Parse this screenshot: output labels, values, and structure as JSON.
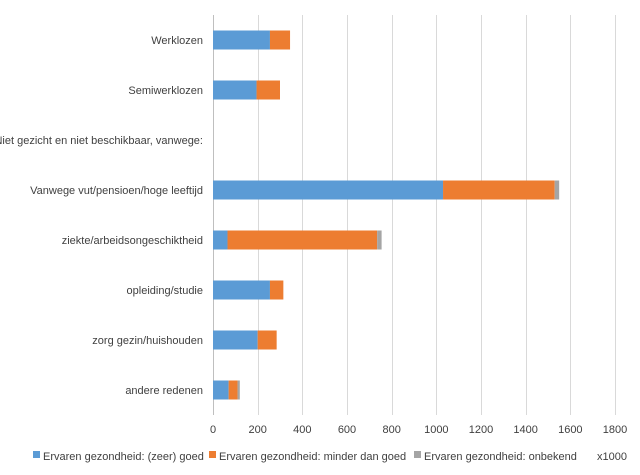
{
  "chart_data": {
    "type": "bar",
    "orientation": "horizontal",
    "stacked": true,
    "categories": [
      "Werklozen",
      "Semiwerklozen",
      "Niet gezicht en niet beschikbaar, vanwege:",
      "Vanwege vut/pensioen/hoge leeftijd",
      "ziekte/arbeidsongeschiktheid",
      "opleiding/studie",
      "zorg gezin/huishouden",
      "andere redenen"
    ],
    "series": [
      {
        "name": "Ervaren gezondheid: (zeer) goed",
        "color": "#5b9bd5",
        "values": [
          255,
          195,
          0,
          1030,
          65,
          255,
          200,
          70
        ]
      },
      {
        "name": "Ervaren gezondheid: minder dan goed",
        "color": "#ed7d31",
        "values": [
          90,
          105,
          0,
          500,
          670,
          60,
          85,
          40
        ]
      },
      {
        "name": "Ervaren gezondheid: onbekend",
        "color": "#a5a5a5",
        "values": [
          0,
          0,
          0,
          20,
          20,
          0,
          0,
          10
        ]
      }
    ],
    "xlim": [
      0,
      1800
    ],
    "xticks": [
      0,
      200,
      400,
      600,
      800,
      1000,
      1200,
      1400,
      1600,
      1800
    ],
    "unit_note": "x1000",
    "grid": true,
    "legend_position": "bottom"
  }
}
